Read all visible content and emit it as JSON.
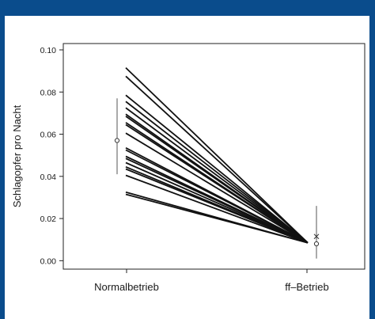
{
  "chart_data": {
    "type": "line",
    "xlabel": "",
    "ylabel": "Schlagopfer pro Nacht",
    "categories": [
      "Normalbetrieb",
      "ff–Betrieb"
    ],
    "ylim": [
      -0.004,
      0.103
    ],
    "yticks": [
      "0.00",
      "0.02",
      "0.04",
      "0.06",
      "0.08",
      "0.10"
    ],
    "ytick_values": [
      0.0,
      0.02,
      0.04,
      0.06,
      0.08,
      0.1
    ],
    "series_start_values": [
      0.0915,
      0.0875,
      0.0785,
      0.0755,
      0.0725,
      0.0695,
      0.0685,
      0.0655,
      0.0645,
      0.0605,
      0.0535,
      0.0525,
      0.0495,
      0.0485,
      0.0465,
      0.0445,
      0.0435,
      0.0405,
      0.0325,
      0.0315
    ],
    "series_end_value": 0.0085,
    "summary_normal": {
      "mean": 0.057,
      "lower": 0.041,
      "upper": 0.077
    },
    "summary_ff": {
      "mean": 0.008,
      "lower": 0.001,
      "upper": 0.026,
      "cross": 0.0115
    },
    "grid": false,
    "legend": "none"
  }
}
